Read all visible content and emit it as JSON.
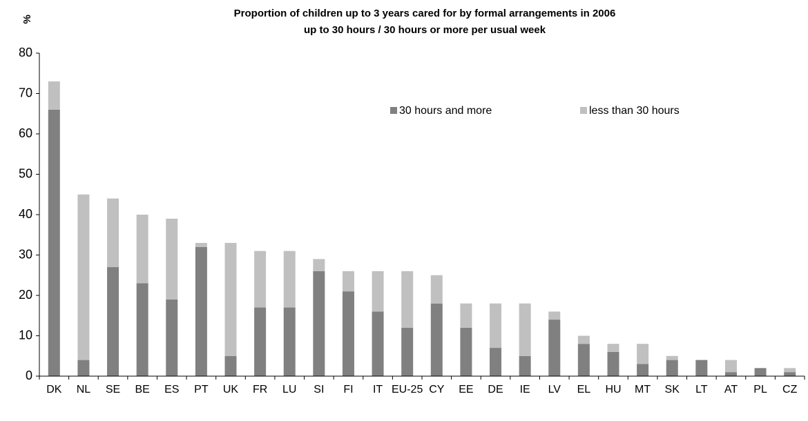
{
  "chart_data": {
    "type": "stacked_bar",
    "title": "Proportion of children up to 3 years cared for by formal arrangements in 2006",
    "subtitle": "up to 30 hours / 30 hours or more per usual week",
    "y_label": "%",
    "categories": [
      "DK",
      "NL",
      "SE",
      "BE",
      "ES",
      "PT",
      "UK",
      "FR",
      "LU",
      "SI",
      "FI",
      "IT",
      "EU-25",
      "CY",
      "EE",
      "DE",
      "IE",
      "LV",
      "EL",
      "HU",
      "MT",
      "SK",
      "LT",
      "AT",
      "PL",
      "CZ"
    ],
    "series": [
      {
        "name": "30 hours and more",
        "color": "#808080",
        "values": [
          66,
          4,
          27,
          23,
          19,
          32,
          5,
          17,
          17,
          26,
          21,
          16,
          12,
          18,
          12,
          7,
          5,
          14,
          8,
          6,
          3,
          4,
          4,
          1,
          2,
          1
        ]
      },
      {
        "name": "less than 30 hours",
        "color": "#c0c0c0",
        "values": [
          7,
          41,
          17,
          17,
          20,
          1,
          28,
          14,
          14,
          3,
          5,
          10,
          14,
          7,
          6,
          11,
          13,
          2,
          2,
          2,
          5,
          1,
          0,
          3,
          0,
          1
        ]
      }
    ],
    "ylim": [
      0,
      80
    ],
    "yticks": [
      0,
      10,
      20,
      30,
      40,
      50,
      60,
      70,
      80
    ],
    "grid": false
  }
}
